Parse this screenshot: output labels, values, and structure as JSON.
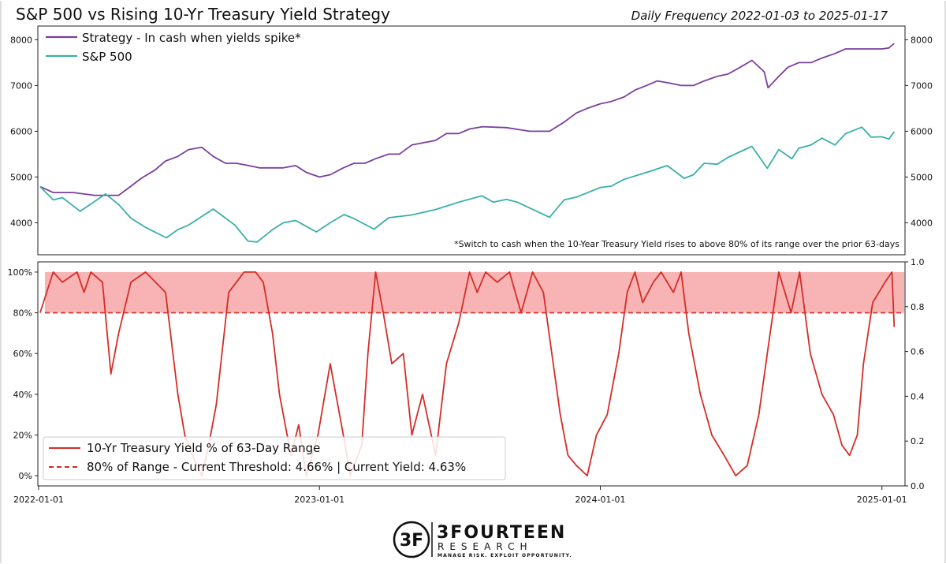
{
  "header": {
    "title": "S&P 500 vs Rising 10-Yr Treasury Yield Strategy",
    "subtitle": "Daily Frequency 2022-01-03 to 2025-01-17"
  },
  "logo": {
    "monogram": "3F",
    "name": "3FOURTEEN",
    "line2": "RESEARCH",
    "tagline": "MANAGE RISK. EXPLOIT OPPORTUNITY."
  },
  "chart_data": [
    {
      "type": "line",
      "xlabel": "",
      "ylabel": "",
      "ylim": [
        3300,
        8300
      ],
      "yticks": [
        4000,
        5000,
        6000,
        7000,
        8000
      ],
      "y_axes": "left-and-right",
      "legend_position": "top-left",
      "footnote": "*Switch to cash when the 10-Year Treasury Yield rises to above 80% of its range over the prior 63-days",
      "series": [
        {
          "name": "Strategy - In cash when yields spike*",
          "color": "#7b3f9e",
          "x": [
            "2022-01-03",
            "2022-01-20",
            "2022-02-15",
            "2022-03-15",
            "2022-04-15",
            "2022-05-01",
            "2022-05-15",
            "2022-06-01",
            "2022-06-15",
            "2022-07-01",
            "2022-07-15",
            "2022-08-01",
            "2022-08-16",
            "2022-09-01",
            "2022-09-15",
            "2022-10-01",
            "2022-10-15",
            "2022-11-01",
            "2022-11-15",
            "2022-12-01",
            "2022-12-15",
            "2023-01-01",
            "2023-01-15",
            "2023-02-01",
            "2023-02-15",
            "2023-03-01",
            "2023-03-15",
            "2023-04-01",
            "2023-04-15",
            "2023-05-01",
            "2023-06-01",
            "2023-06-15",
            "2023-07-01",
            "2023-07-15",
            "2023-08-01",
            "2023-09-01",
            "2023-10-01",
            "2023-10-27",
            "2023-11-15",
            "2023-12-01",
            "2023-12-15",
            "2024-01-01",
            "2024-01-15",
            "2024-02-01",
            "2024-02-15",
            "2024-03-01",
            "2024-03-15",
            "2024-04-01",
            "2024-04-15",
            "2024-05-01",
            "2024-05-15",
            "2024-06-01",
            "2024-06-15",
            "2024-07-01",
            "2024-07-16",
            "2024-08-01",
            "2024-08-06",
            "2024-08-20",
            "2024-09-01",
            "2024-09-15",
            "2024-10-01",
            "2024-10-15",
            "2024-11-01",
            "2024-11-15",
            "2024-12-01",
            "2024-12-15",
            "2025-01-01",
            "2025-01-10",
            "2025-01-17"
          ],
          "values": [
            4790,
            4660,
            4660,
            4600,
            4600,
            4800,
            4980,
            5150,
            5350,
            5450,
            5600,
            5650,
            5450,
            5300,
            5300,
            5250,
            5200,
            5200,
            5200,
            5250,
            5100,
            5000,
            5050,
            5200,
            5300,
            5300,
            5400,
            5500,
            5500,
            5700,
            5800,
            5950,
            5950,
            6050,
            6100,
            6080,
            6000,
            6000,
            6200,
            6400,
            6500,
            6600,
            6650,
            6750,
            6900,
            7000,
            7100,
            7050,
            7000,
            7000,
            7100,
            7200,
            7250,
            7400,
            7550,
            7300,
            6950,
            7200,
            7400,
            7500,
            7500,
            7600,
            7700,
            7800,
            7800,
            7800,
            7800,
            7820,
            7920
          ]
        },
        {
          "name": "S&P 500",
          "color": "#3aafa9",
          "x": [
            "2022-01-03",
            "2022-01-20",
            "2022-02-01",
            "2022-02-24",
            "2022-03-29",
            "2022-04-15",
            "2022-05-01",
            "2022-05-20",
            "2022-06-16",
            "2022-07-01",
            "2022-07-15",
            "2022-08-16",
            "2022-09-01",
            "2022-09-13",
            "2022-09-30",
            "2022-10-12",
            "2022-11-01",
            "2022-11-15",
            "2022-12-01",
            "2022-12-28",
            "2023-01-15",
            "2023-02-02",
            "2023-02-15",
            "2023-03-13",
            "2023-04-01",
            "2023-05-01",
            "2023-06-01",
            "2023-07-01",
            "2023-07-31",
            "2023-08-15",
            "2023-09-01",
            "2023-09-15",
            "2023-10-27",
            "2023-11-15",
            "2023-12-01",
            "2024-01-01",
            "2024-01-15",
            "2024-02-01",
            "2024-03-01",
            "2024-03-28",
            "2024-04-19",
            "2024-05-01",
            "2024-05-15",
            "2024-06-01",
            "2024-06-15",
            "2024-07-16",
            "2024-08-05",
            "2024-08-20",
            "2024-09-06",
            "2024-09-15",
            "2024-10-01",
            "2024-10-15",
            "2024-11-01",
            "2024-11-15",
            "2024-12-06",
            "2024-12-18",
            "2025-01-01",
            "2025-01-10",
            "2025-01-17"
          ],
          "values": [
            4790,
            4500,
            4550,
            4250,
            4630,
            4400,
            4100,
            3900,
            3670,
            3850,
            3950,
            4300,
            4100,
            3950,
            3600,
            3580,
            3850,
            4000,
            4050,
            3800,
            4000,
            4180,
            4090,
            3860,
            4110,
            4170,
            4290,
            4450,
            4590,
            4450,
            4510,
            4450,
            4120,
            4500,
            4560,
            4770,
            4800,
            4950,
            5100,
            5250,
            4970,
            5050,
            5300,
            5280,
            5430,
            5670,
            5190,
            5600,
            5400,
            5630,
            5700,
            5850,
            5700,
            5950,
            6090,
            5870,
            5880,
            5830,
            5990
          ]
        }
      ]
    },
    {
      "type": "line",
      "xlabel": "",
      "ylabel": "",
      "ylim_left": [
        -5,
        105
      ],
      "yticks_left": [
        "0%",
        "20%",
        "40%",
        "60%",
        "80%",
        "100%"
      ],
      "ylim_right": [
        0.0,
        1.0
      ],
      "yticks_right": [
        "0.0",
        "0.2",
        "0.4",
        "0.6",
        "0.8",
        "1.0"
      ],
      "xticks": [
        "2022-01-01",
        "2023-01-01",
        "2024-01-01",
        "2025-01-01"
      ],
      "xlim": [
        "2021-12-31",
        "2025-01-31"
      ],
      "legend_position": "bottom-left",
      "shaded_band": {
        "from": 80,
        "to": 100,
        "color": "#f7a7a7"
      },
      "series": [
        {
          "name": "10-Yr Treasury Yield % of 63-Day Range",
          "color": "#d42d27",
          "x": [
            "2022-01-03",
            "2022-01-20",
            "2022-02-01",
            "2022-02-20",
            "2022-03-01",
            "2022-03-10",
            "2022-03-25",
            "2022-04-05",
            "2022-04-15",
            "2022-05-01",
            "2022-05-20",
            "2022-06-15",
            "2022-07-01",
            "2022-07-10",
            "2022-07-20",
            "2022-08-01",
            "2022-08-10",
            "2022-08-20",
            "2022-09-05",
            "2022-09-25",
            "2022-10-10",
            "2022-10-20",
            "2022-11-01",
            "2022-11-10",
            "2022-11-25",
            "2022-12-05",
            "2022-12-15",
            "2022-12-30",
            "2023-01-15",
            "2023-02-01",
            "2023-02-10",
            "2023-02-25",
            "2023-03-05",
            "2023-03-15",
            "2023-03-25",
            "2023-04-05",
            "2023-04-20",
            "2023-05-01",
            "2023-05-15",
            "2023-06-01",
            "2023-06-15",
            "2023-07-01",
            "2023-07-15",
            "2023-07-25",
            "2023-08-05",
            "2023-08-20",
            "2023-09-05",
            "2023-09-20",
            "2023-10-05",
            "2023-10-19",
            "2023-10-30",
            "2023-11-10",
            "2023-11-20",
            "2023-12-01",
            "2023-12-15",
            "2023-12-27",
            "2024-01-10",
            "2024-01-25",
            "2024-02-05",
            "2024-02-15",
            "2024-02-25",
            "2024-03-10",
            "2024-03-20",
            "2024-04-05",
            "2024-04-15",
            "2024-04-25",
            "2024-05-10",
            "2024-05-25",
            "2024-06-10",
            "2024-06-25",
            "2024-07-10",
            "2024-07-25",
            "2024-08-05",
            "2024-08-20",
            "2024-09-05",
            "2024-09-16",
            "2024-09-30",
            "2024-10-15",
            "2024-10-30",
            "2024-11-10",
            "2024-11-20",
            "2024-11-30",
            "2024-12-08",
            "2024-12-20",
            "2025-01-05",
            "2025-01-14",
            "2025-01-17"
          ],
          "values": [
            80,
            100,
            95,
            100,
            90,
            100,
            95,
            50,
            70,
            95,
            100,
            90,
            40,
            20,
            10,
            0,
            15,
            35,
            90,
            100,
            100,
            95,
            70,
            40,
            10,
            25,
            0,
            20,
            55,
            20,
            0,
            15,
            60,
            100,
            80,
            55,
            60,
            20,
            40,
            10,
            55,
            75,
            100,
            90,
            100,
            95,
            100,
            80,
            100,
            90,
            60,
            30,
            10,
            5,
            0,
            20,
            30,
            60,
            90,
            100,
            85,
            95,
            100,
            90,
            100,
            70,
            40,
            20,
            10,
            0,
            5,
            30,
            60,
            100,
            80,
            100,
            60,
            40,
            30,
            15,
            10,
            20,
            55,
            85,
            95,
            100,
            73
          ]
        },
        {
          "name": "80% of Range - Current Threshold: 4.66% | Current Yield: 4.63%",
          "color": "#d42d27",
          "style": "dashed",
          "values": [
            80
          ]
        }
      ]
    }
  ]
}
